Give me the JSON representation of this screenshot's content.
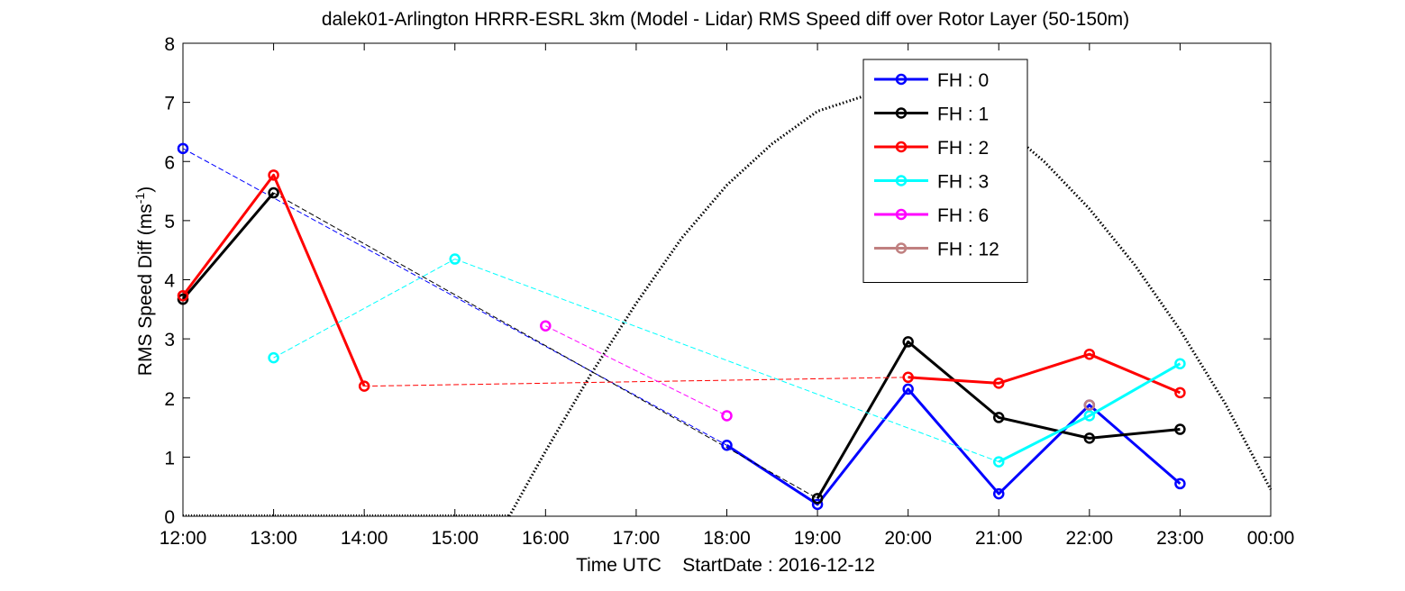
{
  "chart_data": {
    "type": "line",
    "title": "dalek01-Arlington HRRR-ESRL 3km (Model - Lidar) RMS Speed diff over Rotor Layer (50-150m)",
    "xlabel": "Time UTC    StartDate : 2016-12-12",
    "ylabel_main": "RMS Speed Diff (ms",
    "ylabel_sup": "-1",
    "ylabel_close": ")",
    "xlim": [
      12,
      24
    ],
    "ylim": [
      0,
      8
    ],
    "xticks": [
      12,
      13,
      14,
      15,
      16,
      17,
      18,
      19,
      20,
      21,
      22,
      23,
      24
    ],
    "xtick_labels": [
      "12:00",
      "13:00",
      "14:00",
      "15:00",
      "16:00",
      "17:00",
      "18:00",
      "19:00",
      "20:00",
      "21:00",
      "22:00",
      "23:00",
      "00:00"
    ],
    "yticks": [
      0,
      1,
      2,
      3,
      4,
      5,
      6,
      7,
      8
    ],
    "ytick_labels": [
      "0",
      "1",
      "2",
      "3",
      "4",
      "5",
      "6",
      "7",
      "8"
    ],
    "grid": false,
    "legend_position": "top-right",
    "series": [
      {
        "name": "FH : 0",
        "color": "#0000ff",
        "points": [
          [
            12,
            6.22
          ],
          [
            18,
            1.2
          ],
          [
            19,
            0.2
          ],
          [
            20,
            2.15
          ],
          [
            21,
            0.38
          ],
          [
            22,
            1.88
          ],
          [
            23,
            0.55
          ]
        ],
        "dashed": [
          [
            0,
            1
          ]
        ],
        "solid": [
          [
            1,
            2,
            3,
            4,
            5,
            6
          ]
        ]
      },
      {
        "name": "FH : 1",
        "color": "#000000",
        "points": [
          [
            12,
            3.67
          ],
          [
            13,
            5.47
          ],
          [
            19,
            0.3
          ],
          [
            20,
            2.95
          ],
          [
            21,
            1.67
          ],
          [
            22,
            1.32
          ],
          [
            23,
            1.47
          ]
        ],
        "dashed": [
          [
            1,
            2
          ]
        ],
        "solid": [
          [
            0,
            1
          ],
          [
            2,
            3,
            4,
            5,
            6
          ]
        ]
      },
      {
        "name": "FH : 2",
        "color": "#ff0000",
        "points": [
          [
            12,
            3.73
          ],
          [
            13,
            5.77
          ],
          [
            14,
            2.2
          ],
          [
            20,
            2.35
          ],
          [
            21,
            2.25
          ],
          [
            22,
            2.74
          ],
          [
            23,
            2.09
          ]
        ],
        "dashed": [
          [
            2,
            3
          ]
        ],
        "solid": [
          [
            0,
            1,
            2
          ],
          [
            3,
            4,
            5,
            6
          ]
        ]
      },
      {
        "name": "FH : 3",
        "color": "#00ffff",
        "points": [
          [
            13,
            2.68
          ],
          [
            15,
            4.35
          ],
          [
            21,
            0.92
          ],
          [
            22,
            1.7
          ],
          [
            23,
            2.58
          ]
        ],
        "dashed": [
          [
            0,
            1
          ],
          [
            1,
            2
          ]
        ],
        "solid": [
          [
            2,
            3,
            4
          ]
        ]
      },
      {
        "name": "FH : 6",
        "color": "#ff00ff",
        "points": [
          [
            16,
            3.22
          ],
          [
            18,
            1.7
          ]
        ],
        "dashed": [
          [
            0,
            1
          ]
        ],
        "solid": []
      },
      {
        "name": "FH : 12",
        "color": "#c08080",
        "points": [
          [
            22,
            1.88
          ]
        ],
        "dashed": [],
        "solid": []
      }
    ],
    "curve": {
      "style": "dotted",
      "color": "#000000",
      "points": [
        [
          15.6,
          0
        ],
        [
          16,
          1.1
        ],
        [
          16.5,
          2.4
        ],
        [
          17,
          3.6
        ],
        [
          17.5,
          4.7
        ],
        [
          18,
          5.6
        ],
        [
          18.5,
          6.3
        ],
        [
          19,
          6.85
        ],
        [
          19.5,
          7.1
        ],
        [
          20,
          7.2
        ],
        [
          20.5,
          7.05
        ],
        [
          21,
          6.65
        ],
        [
          21.5,
          6.0
        ],
        [
          22,
          5.2
        ],
        [
          22.5,
          4.25
        ],
        [
          23,
          3.15
        ],
        [
          23.5,
          1.9
        ],
        [
          24,
          0.45
        ]
      ],
      "baseline": [
        [
          12,
          0
        ],
        [
          15.6,
          0
        ]
      ]
    }
  }
}
